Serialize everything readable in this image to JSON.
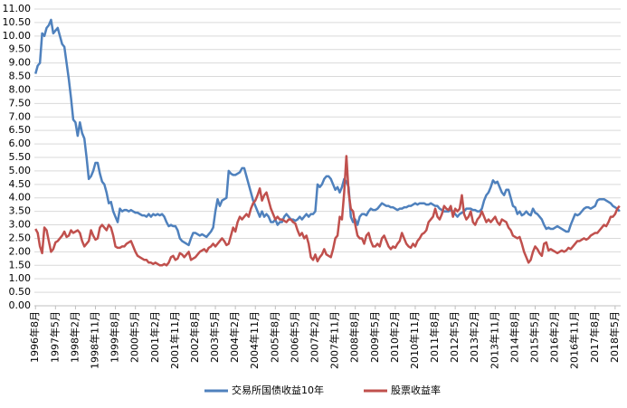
{
  "chart_data": {
    "type": "line",
    "grid": true,
    "legend": "bottom",
    "ylim": [
      0,
      11
    ],
    "yticks": [
      {
        "value": 0,
        "label": "0.00"
      },
      {
        "value": 0.5,
        "label": "0.50"
      },
      {
        "value": 1,
        "label": "1.00"
      },
      {
        "value": 1.5,
        "label": "1.50"
      },
      {
        "value": 2,
        "label": "2.00"
      },
      {
        "value": 2.5,
        "label": "2.50"
      },
      {
        "value": 3,
        "label": "3.00"
      },
      {
        "value": 3.5,
        "label": "3.50"
      },
      {
        "value": 4,
        "label": "4.00"
      },
      {
        "value": 4.5,
        "label": "4.50"
      },
      {
        "value": 5,
        "label": "5.00"
      },
      {
        "value": 5.5,
        "label": "5.50"
      },
      {
        "value": 6,
        "label": "6.00"
      },
      {
        "value": 6.5,
        "label": "6.50"
      },
      {
        "value": 7,
        "label": "7.00"
      },
      {
        "value": 7.5,
        "label": "7.50"
      },
      {
        "value": 8,
        "label": "8.00"
      },
      {
        "value": 8.5,
        "label": "8.50"
      },
      {
        "value": 9,
        "label": "9.00"
      },
      {
        "value": 9.5,
        "label": "9.50"
      },
      {
        "value": 10,
        "label": "10.00"
      },
      {
        "value": 10.5,
        "label": "10.50"
      },
      {
        "value": 11,
        "label": "11.00"
      }
    ],
    "categories": [
      "1996年8月",
      null,
      null,
      null,
      null,
      null,
      null,
      null,
      null,
      "1997年5月",
      null,
      null,
      null,
      null,
      null,
      null,
      null,
      null,
      "1998年2月",
      null,
      null,
      null,
      null,
      null,
      null,
      null,
      null,
      "1998年11月",
      null,
      null,
      null,
      null,
      null,
      null,
      null,
      null,
      "1999年8月",
      null,
      null,
      null,
      null,
      null,
      null,
      null,
      null,
      "2000年5月",
      null,
      null,
      null,
      null,
      null,
      null,
      null,
      null,
      "2001年2月",
      null,
      null,
      null,
      null,
      null,
      null,
      null,
      null,
      "2001年11月",
      null,
      null,
      null,
      null,
      null,
      null,
      null,
      null,
      "2002年8月",
      null,
      null,
      null,
      null,
      null,
      null,
      null,
      null,
      "2003年5月",
      null,
      null,
      null,
      null,
      null,
      null,
      null,
      null,
      "2004年2月",
      null,
      null,
      null,
      null,
      null,
      null,
      null,
      null,
      "2004年11月",
      null,
      null,
      null,
      null,
      null,
      null,
      null,
      null,
      "2005年8月",
      null,
      null,
      null,
      null,
      null,
      null,
      null,
      null,
      "2006年5月",
      null,
      null,
      null,
      null,
      null,
      null,
      null,
      null,
      "2007年2月",
      null,
      null,
      null,
      null,
      null,
      null,
      null,
      null,
      "2007年11月",
      null,
      null,
      null,
      null,
      null,
      null,
      null,
      null,
      "2008年8月",
      null,
      null,
      null,
      null,
      null,
      null,
      null,
      null,
      "2009年5月",
      null,
      null,
      null,
      null,
      null,
      null,
      null,
      null,
      "2010年2月",
      null,
      null,
      null,
      null,
      null,
      null,
      null,
      null,
      "2010年11月",
      null,
      null,
      null,
      null,
      null,
      null,
      null,
      null,
      "2011年8月",
      null,
      null,
      null,
      null,
      null,
      null,
      null,
      null,
      "2012年5月",
      null,
      null,
      null,
      null,
      null,
      null,
      null,
      null,
      "2013年2月",
      null,
      null,
      null,
      null,
      null,
      null,
      null,
      null,
      "2013年11月",
      null,
      null,
      null,
      null,
      null,
      null,
      null,
      null,
      "2014年8月",
      null,
      null,
      null,
      null,
      null,
      null,
      null,
      null,
      "2015年5月",
      null,
      null,
      null,
      null,
      null,
      null,
      null,
      null,
      "2016年2月",
      null,
      null,
      null,
      null,
      null,
      null,
      null,
      null,
      "2016年11月",
      null,
      null,
      null,
      null,
      null,
      null,
      null,
      null,
      "2017年8月",
      null,
      null,
      null,
      null,
      null,
      null,
      null,
      null,
      "2018年5月",
      null,
      null
    ],
    "series": [
      {
        "name": "交易所国债收益10年",
        "color": "#4f81bd",
        "values": [
          8.6,
          8.9,
          9.0,
          10.1,
          10.0,
          10.3,
          10.4,
          10.6,
          10.1,
          10.2,
          10.3,
          10.0,
          9.7,
          9.6,
          9.0,
          8.4,
          7.7,
          6.9,
          6.8,
          6.3,
          6.8,
          6.4,
          6.2,
          5.5,
          4.7,
          4.8,
          5.0,
          5.3,
          5.3,
          4.9,
          4.6,
          4.5,
          4.2,
          3.8,
          3.85,
          3.5,
          3.3,
          3.1,
          3.6,
          3.5,
          3.55,
          3.55,
          3.5,
          3.55,
          3.5,
          3.45,
          3.45,
          3.4,
          3.35,
          3.35,
          3.3,
          3.4,
          3.3,
          3.4,
          3.35,
          3.4,
          3.35,
          3.4,
          3.3,
          3.1,
          2.95,
          3.0,
          2.95,
          2.95,
          2.8,
          2.5,
          2.4,
          2.35,
          2.3,
          2.25,
          2.5,
          2.7,
          2.7,
          2.65,
          2.6,
          2.65,
          2.6,
          2.55,
          2.65,
          2.75,
          2.9,
          3.5,
          3.95,
          3.7,
          3.9,
          3.95,
          4.0,
          5.0,
          4.9,
          4.85,
          4.85,
          4.9,
          4.95,
          5.1,
          5.1,
          4.8,
          4.5,
          4.2,
          3.9,
          3.7,
          3.5,
          3.3,
          3.5,
          3.3,
          3.4,
          3.3,
          3.1,
          3.1,
          3.2,
          3.0,
          3.1,
          3.1,
          3.3,
          3.4,
          3.3,
          3.2,
          3.2,
          3.15,
          3.2,
          3.3,
          3.2,
          3.3,
          3.4,
          3.3,
          3.4,
          3.4,
          3.5,
          4.5,
          4.4,
          4.5,
          4.7,
          4.8,
          4.8,
          4.7,
          4.5,
          4.3,
          4.4,
          4.2,
          4.4,
          4.7,
          4.6,
          4.4,
          3.3,
          3.1,
          3.2,
          3.0,
          3.3,
          3.4,
          3.4,
          3.35,
          3.5,
          3.6,
          3.55,
          3.55,
          3.6,
          3.7,
          3.8,
          3.75,
          3.7,
          3.7,
          3.65,
          3.65,
          3.6,
          3.55,
          3.6,
          3.6,
          3.65,
          3.65,
          3.7,
          3.7,
          3.75,
          3.8,
          3.75,
          3.8,
          3.8,
          3.8,
          3.75,
          3.75,
          3.8,
          3.75,
          3.7,
          3.7,
          3.6,
          3.55,
          3.5,
          3.5,
          3.5,
          3.55,
          3.5,
          3.4,
          3.3,
          3.4,
          3.45,
          3.5,
          3.6,
          3.6,
          3.6,
          3.55,
          3.55,
          3.5,
          3.5,
          3.6,
          3.9,
          4.1,
          4.2,
          4.4,
          4.65,
          4.55,
          4.6,
          4.4,
          4.2,
          4.1,
          4.3,
          4.3,
          4.0,
          3.7,
          3.65,
          3.4,
          3.5,
          3.35,
          3.4,
          3.5,
          3.4,
          3.35,
          3.6,
          3.45,
          3.4,
          3.3,
          3.2,
          3.0,
          2.85,
          2.9,
          2.85,
          2.85,
          2.9,
          2.95,
          2.9,
          2.85,
          2.8,
          2.75,
          2.75,
          3.0,
          3.2,
          3.4,
          3.35,
          3.4,
          3.5,
          3.6,
          3.65,
          3.65,
          3.6,
          3.65,
          3.7,
          3.9,
          3.95,
          3.95,
          3.95,
          3.9,
          3.85,
          3.8,
          3.7,
          3.65,
          3.6,
          3.5
        ]
      },
      {
        "name": "股票收益率",
        "color": "#c0504d",
        "values": [
          2.85,
          2.7,
          2.2,
          1.95,
          2.9,
          2.8,
          2.4,
          2.0,
          2.1,
          2.35,
          2.4,
          2.5,
          2.6,
          2.75,
          2.55,
          2.6,
          2.8,
          2.7,
          2.75,
          2.8,
          2.7,
          2.4,
          2.2,
          2.3,
          2.4,
          2.8,
          2.6,
          2.45,
          2.5,
          2.9,
          3.0,
          2.9,
          2.8,
          3.0,
          2.9,
          2.6,
          2.2,
          2.15,
          2.15,
          2.2,
          2.2,
          2.3,
          2.35,
          2.4,
          2.2,
          2.0,
          1.85,
          1.8,
          1.75,
          1.7,
          1.7,
          1.6,
          1.6,
          1.55,
          1.6,
          1.55,
          1.5,
          1.5,
          1.55,
          1.5,
          1.6,
          1.8,
          1.85,
          1.7,
          1.75,
          1.95,
          1.9,
          1.8,
          1.9,
          2.0,
          1.7,
          1.75,
          1.8,
          1.9,
          2.0,
          2.05,
          2.1,
          2.0,
          2.15,
          2.2,
          2.3,
          2.2,
          2.3,
          2.4,
          2.5,
          2.4,
          2.25,
          2.3,
          2.6,
          2.9,
          2.75,
          3.1,
          3.3,
          3.2,
          3.3,
          3.4,
          3.3,
          3.6,
          3.8,
          3.9,
          4.1,
          4.35,
          3.9,
          4.1,
          4.2,
          3.9,
          3.6,
          3.4,
          3.2,
          3.3,
          3.2,
          3.2,
          3.15,
          3.1,
          3.2,
          3.2,
          3.1,
          3.05,
          2.8,
          2.6,
          2.7,
          2.5,
          2.6,
          2.3,
          1.8,
          1.7,
          1.9,
          1.65,
          1.8,
          1.9,
          2.1,
          1.9,
          1.85,
          1.8,
          2.1,
          2.5,
          2.6,
          3.3,
          3.2,
          4.2,
          5.55,
          4.2,
          3.6,
          3.5,
          3.0,
          2.6,
          2.5,
          2.5,
          2.3,
          2.6,
          2.7,
          2.4,
          2.2,
          2.2,
          2.3,
          2.2,
          2.5,
          2.6,
          2.4,
          2.2,
          2.1,
          2.2,
          2.15,
          2.3,
          2.4,
          2.7,
          2.5,
          2.3,
          2.2,
          2.15,
          2.3,
          2.2,
          2.4,
          2.5,
          2.65,
          2.7,
          2.8,
          3.1,
          3.2,
          3.3,
          3.6,
          3.3,
          3.2,
          3.4,
          3.7,
          3.6,
          3.55,
          3.7,
          3.3,
          3.6,
          3.5,
          3.6,
          4.1,
          3.4,
          3.2,
          3.3,
          3.5,
          3.1,
          3.0,
          3.2,
          3.3,
          3.5,
          3.3,
          3.1,
          3.2,
          3.1,
          3.2,
          3.3,
          3.1,
          3.0,
          3.2,
          3.15,
          3.1,
          2.9,
          2.8,
          2.6,
          2.55,
          2.5,
          2.55,
          2.3,
          2.0,
          1.8,
          1.6,
          1.7,
          2.0,
          2.2,
          2.1,
          1.95,
          1.85,
          2.3,
          2.35,
          2.05,
          2.1,
          2.05,
          2.0,
          1.95,
          2.0,
          2.05,
          2.0,
          2.05,
          2.15,
          2.1,
          2.2,
          2.3,
          2.4,
          2.4,
          2.45,
          2.5,
          2.45,
          2.5,
          2.6,
          2.65,
          2.7,
          2.7,
          2.8,
          2.9,
          3.0,
          2.95,
          3.1,
          3.3,
          3.3,
          3.4,
          3.6,
          3.7
        ]
      }
    ]
  }
}
